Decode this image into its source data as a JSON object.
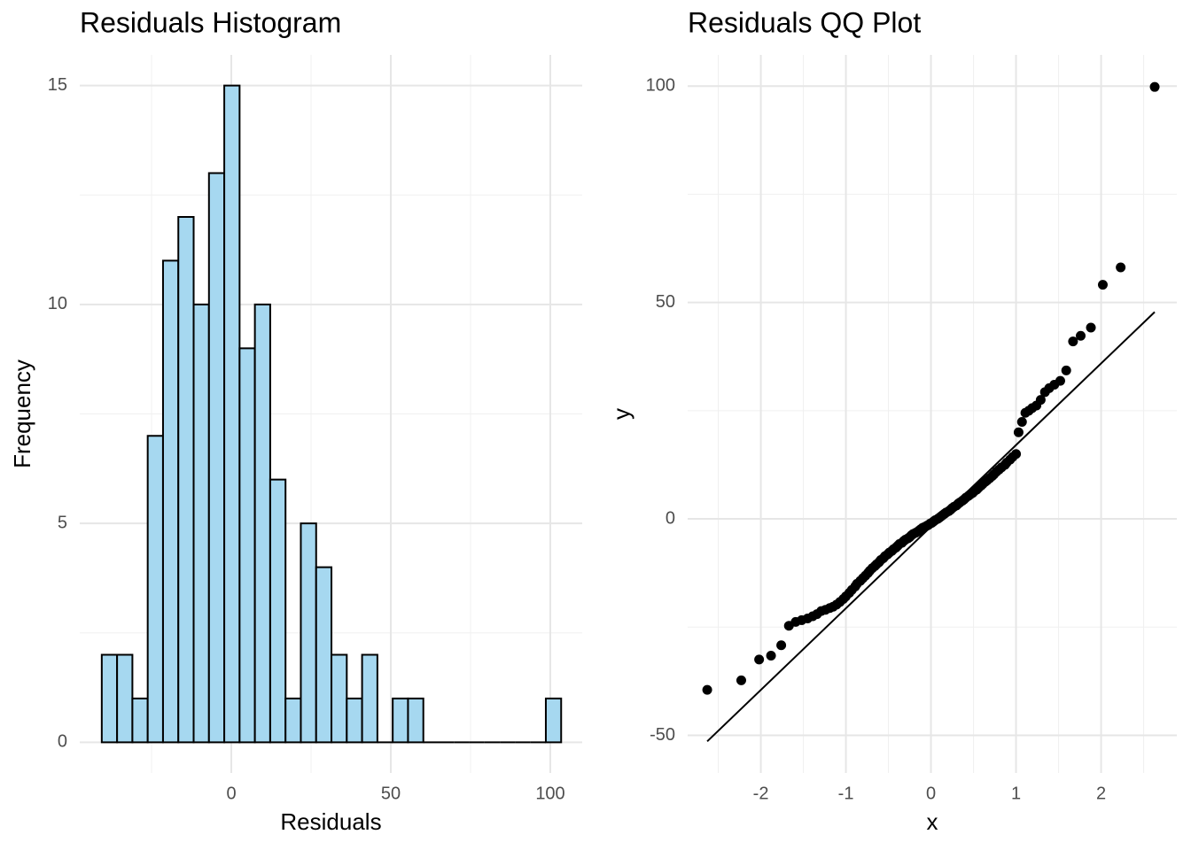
{
  "chart_data": [
    {
      "type": "histogram",
      "title": "Residuals Histogram",
      "x_label": "Residuals",
      "y_label": "Frequency",
      "bins": [
        -40.6,
        -35.8,
        -31,
        -26.2,
        -21.4,
        -16.6,
        -11.8,
        -7,
        -2.2,
        2.6,
        7.4,
        12.2,
        17,
        21.8,
        26.6,
        31.4,
        36.2,
        41,
        45.8,
        50.6,
        55.4,
        60.2,
        65,
        69.8,
        74.6,
        79.4,
        84.2,
        89,
        93.8,
        98.6,
        103.4
      ],
      "values": [
        2,
        2,
        1,
        7,
        11,
        12,
        10,
        13,
        15,
        9,
        10,
        6,
        1,
        5,
        4,
        2,
        1,
        2,
        0,
        1,
        1,
        0,
        0,
        0,
        0,
        0,
        0,
        0,
        0,
        1
      ],
      "color": "#a6d8f0",
      "edge_color": "#000000",
      "xlim": [
        -47.5,
        110
      ],
      "ylim": [
        -0.7,
        15.7
      ],
      "xticks": [
        0,
        50,
        100
      ],
      "yticks": [
        0,
        5,
        10,
        15
      ],
      "xticks_minor": [
        -25,
        25,
        75
      ],
      "yticks_minor": [
        2.5,
        7.5,
        12.5
      ],
      "grid": true
    },
    {
      "type": "scatter",
      "title": "Residuals QQ Plot",
      "x_label": "x",
      "y_label": "y",
      "x": [
        -2.63,
        -2.23,
        -2.02,
        -1.88,
        -1.76,
        -1.67,
        -1.59,
        -1.52,
        -1.45,
        -1.39,
        -1.34,
        -1.29,
        -1.24,
        -1.19,
        -1.15,
        -1.11,
        -1.07,
        -1.03,
        -1.0,
        -0.96,
        -0.93,
        -0.89,
        -0.87,
        -0.83,
        -0.8,
        -0.77,
        -0.74,
        -0.72,
        -0.69,
        -0.66,
        -0.64,
        -0.61,
        -0.59,
        -0.56,
        -0.54,
        -0.51,
        -0.49,
        -0.46,
        -0.44,
        -0.41,
        -0.39,
        -0.37,
        -0.34,
        -0.32,
        -0.3,
        -0.27,
        -0.25,
        -0.23,
        -0.21,
        -0.18,
        -0.16,
        -0.14,
        -0.12,
        -0.1,
        -0.08,
        -0.05,
        -0.03,
        -0.01,
        0.01,
        0.03,
        0.05,
        0.08,
        0.1,
        0.12,
        0.14,
        0.16,
        0.18,
        0.21,
        0.23,
        0.25,
        0.27,
        0.3,
        0.32,
        0.34,
        0.37,
        0.39,
        0.41,
        0.44,
        0.46,
        0.49,
        0.51,
        0.54,
        0.56,
        0.59,
        0.61,
        0.64,
        0.66,
        0.69,
        0.72,
        0.74,
        0.77,
        0.8,
        0.83,
        0.87,
        0.89,
        0.93,
        0.96,
        1.0,
        1.03,
        1.07,
        1.11,
        1.15,
        1.19,
        1.24,
        1.29,
        1.34,
        1.39,
        1.45,
        1.52,
        1.59,
        1.67,
        1.76,
        1.88,
        2.02,
        2.23,
        2.63
      ],
      "values": [
        -39.5,
        -37.3,
        -32.5,
        -31.6,
        -29.2,
        -24.7,
        -23.8,
        -23.4,
        -23.0,
        -22.5,
        -22.0,
        -21.3,
        -21.0,
        -20.6,
        -20.3,
        -19.8,
        -19.2,
        -18.5,
        -17.9,
        -17.1,
        -16.4,
        -15.6,
        -15.0,
        -14.3,
        -13.7,
        -13.1,
        -12.5,
        -12.0,
        -11.4,
        -10.9,
        -10.5,
        -10.0,
        -9.5,
        -9.1,
        -8.6,
        -8.2,
        -7.8,
        -7.4,
        -7.0,
        -6.6,
        -6.2,
        -5.8,
        -5.5,
        -5.1,
        -4.8,
        -4.5,
        -4.2,
        -3.8,
        -3.5,
        -3.2,
        -3.0,
        -2.7,
        -2.4,
        -2.1,
        -1.9,
        -1.6,
        -1.4,
        -1.1,
        -0.9,
        -0.6,
        -0.3,
        0.0,
        0.3,
        0.6,
        0.9,
        1.2,
        1.5,
        1.8,
        2.1,
        2.5,
        2.8,
        3.1,
        3.5,
        3.8,
        4.2,
        4.5,
        4.9,
        5.3,
        5.6,
        6.0,
        6.4,
        6.8,
        7.2,
        7.7,
        8.1,
        8.6,
        8.9,
        9.4,
        9.9,
        10.3,
        10.9,
        11.4,
        11.9,
        12.5,
        13.0,
        13.7,
        14.3,
        15.0,
        20.0,
        22.4,
        24.5,
        25.0,
        25.6,
        26.2,
        27.5,
        29.3,
        30.2,
        31.0,
        31.9,
        34.3,
        41.0,
        42.3,
        44.2,
        54.1,
        58.1,
        99.8
      ],
      "color": "#000000",
      "reference_line": {
        "x": [
          -2.63,
          2.63
        ],
        "y": [
          -51.4,
          47.8
        ],
        "color": "#000000"
      },
      "xlim": [
        -2.86,
        2.89
      ],
      "ylim": [
        -58.7,
        107.2
      ],
      "xticks": [
        -2,
        -1,
        0,
        1,
        2
      ],
      "yticks": [
        -50,
        0,
        50,
        100
      ],
      "xticks_minor": [
        -2.5,
        -1.5,
        -0.5,
        0.5,
        1.5,
        2.5
      ],
      "yticks_minor": [
        -25,
        25,
        75
      ],
      "grid": true
    }
  ]
}
